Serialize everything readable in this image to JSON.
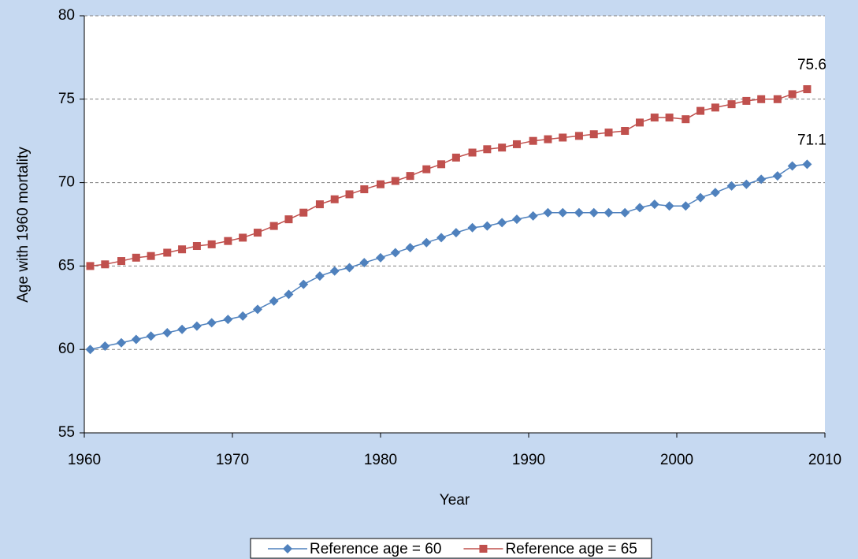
{
  "chart_data": {
    "type": "line",
    "x_label": "Year",
    "y_label": "Age with 1960 mortality",
    "x": [
      1960.4,
      1961.4,
      1962.5,
      1963.5,
      1964.5,
      1965.6,
      1966.6,
      1967.6,
      1968.6,
      1969.7,
      1970.7,
      1971.7,
      1972.8,
      1973.8,
      1974.8,
      1975.9,
      1976.9,
      1977.9,
      1978.9,
      1980.0,
      1981.0,
      1982.0,
      1983.1,
      1984.1,
      1985.1,
      1986.2,
      1987.2,
      1988.2,
      1989.2,
      1990.3,
      1991.3,
      1992.3,
      1993.4,
      1994.4,
      1995.4,
      1996.5,
      1997.5,
      1998.5,
      1999.5,
      2000.6,
      2001.6,
      2002.6,
      2003.7,
      2004.7,
      2005.7,
      2006.8,
      2007.8,
      2008.8
    ],
    "series": [
      {
        "name": "Reference age = 60",
        "color": "#4f81bd",
        "marker": "diamond",
        "values": [
          60.0,
          60.2,
          60.4,
          60.6,
          60.8,
          61.0,
          61.2,
          61.4,
          61.6,
          61.8,
          62.0,
          62.4,
          62.9,
          63.3,
          63.9,
          64.4,
          64.7,
          64.9,
          65.2,
          65.5,
          65.8,
          66.1,
          66.4,
          66.7,
          67.0,
          67.3,
          67.4,
          67.6,
          67.8,
          68.0,
          68.2,
          68.2,
          68.2,
          68.2,
          68.2,
          68.2,
          68.5,
          68.7,
          68.6,
          68.6,
          69.1,
          69.4,
          69.8,
          69.9,
          70.2,
          70.4,
          71.0,
          71.1
        ]
      },
      {
        "name": "Reference age = 65",
        "color": "#c0504d",
        "marker": "square",
        "values": [
          65.0,
          65.1,
          65.3,
          65.5,
          65.6,
          65.8,
          66.0,
          66.2,
          66.3,
          66.5,
          66.7,
          67.0,
          67.4,
          67.8,
          68.2,
          68.7,
          69.0,
          69.3,
          69.6,
          69.9,
          70.1,
          70.4,
          70.8,
          71.1,
          71.5,
          71.8,
          72.0,
          72.1,
          72.3,
          72.5,
          72.6,
          72.7,
          72.8,
          72.9,
          73.0,
          73.1,
          73.6,
          73.9,
          73.9,
          73.8,
          74.3,
          74.5,
          74.7,
          74.9,
          75.0,
          75.0,
          75.3,
          75.6
        ]
      }
    ],
    "xlim": [
      1960,
      2010
    ],
    "xticks": [
      1960,
      1970,
      1980,
      1990,
      2000,
      2010
    ],
    "ylim": [
      55,
      80
    ],
    "yticks": [
      55,
      60,
      65,
      70,
      75,
      80
    ],
    "grid": true,
    "legend_position": "bottom"
  }
}
